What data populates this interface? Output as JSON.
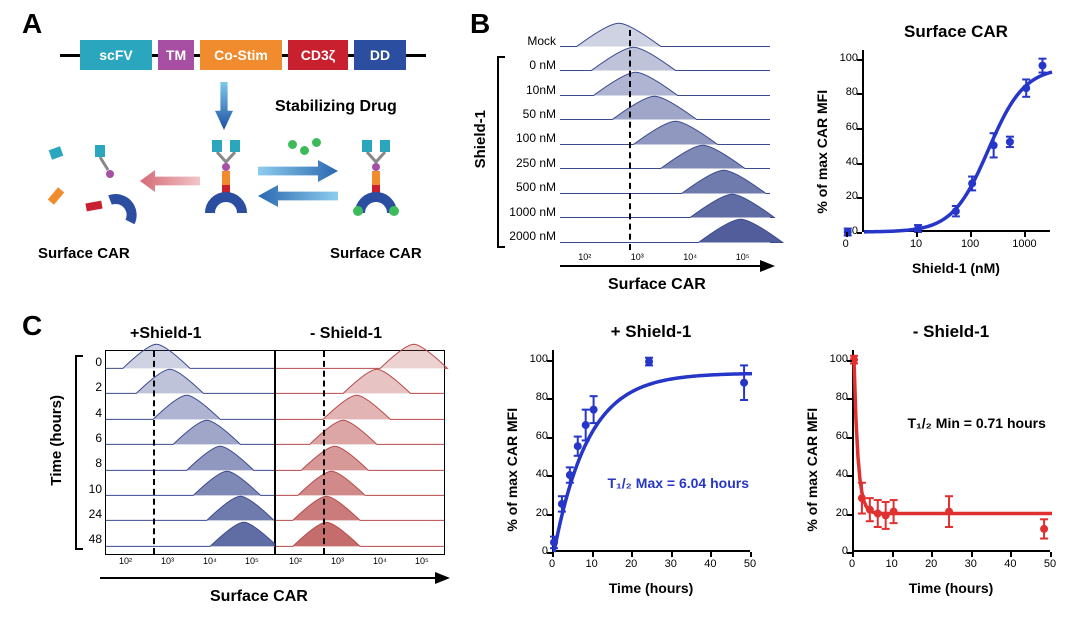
{
  "panelA": {
    "label": "A",
    "construct": [
      {
        "text": "scFV",
        "width": 72,
        "color": "#2aa7bf"
      },
      {
        "text": "TM",
        "width": 36,
        "color": "#a64fa3"
      },
      {
        "text": "Co-Stim",
        "width": 82,
        "color": "#f08c2e"
      },
      {
        "text": "CD3ζ",
        "width": 60,
        "color": "#c8202f"
      },
      {
        "text": "DD",
        "width": 52,
        "color": "#2b4ea0"
      }
    ],
    "stabilizing_drug_label": "Stabilizing\nDrug",
    "surface_car_label": "Surface CAR",
    "drug_color": "#3dbb5b",
    "arrow_gradient": [
      "#7ec8ed",
      "#1e50a2"
    ],
    "red_arrow_color": "#e38b93"
  },
  "panelB": {
    "label": "B",
    "histo": {
      "title": "Surface CAR",
      "bracket_label": "Shield-1",
      "rows": [
        "Mock",
        "0 nM",
        "10nM",
        "50 nM",
        "100 nM",
        "250 nM",
        "500 nM",
        "1000 nM",
        "2000 nM"
      ],
      "peak_positions": [
        0.28,
        0.35,
        0.36,
        0.45,
        0.55,
        0.68,
        0.78,
        0.82,
        0.86
      ],
      "color_base": "#3b4a8f",
      "dash_x": 0.33,
      "x_log_ticks": [
        "10²",
        "10³",
        "10⁴",
        "10⁵"
      ]
    },
    "chart": {
      "title": "Surface CAR",
      "xlabel": "Shield-1 (nM)",
      "ylabel": "% of max CAR MFI",
      "xlog": true,
      "xticks": [
        0,
        10,
        100,
        1000
      ],
      "yticks": [
        0,
        20,
        40,
        60,
        80,
        100
      ],
      "xlim": [
        1,
        3000
      ],
      "ylim": [
        0,
        105
      ],
      "color": "#2636c8",
      "points": [
        {
          "x": 0.5,
          "y": 0,
          "err": 2
        },
        {
          "x": 10,
          "y": 2,
          "err": 2
        },
        {
          "x": 50,
          "y": 12,
          "err": 3
        },
        {
          "x": 100,
          "y": 28,
          "err": 4
        },
        {
          "x": 250,
          "y": 50,
          "err": 7
        },
        {
          "x": 500,
          "y": 52,
          "err": 3
        },
        {
          "x": 1000,
          "y": 83,
          "err": 5
        },
        {
          "x": 2000,
          "y": 96,
          "err": 4
        }
      ]
    }
  },
  "panelC": {
    "label": "C",
    "histo": {
      "title_left": "+Shield-1",
      "title_right": "- Shield-1",
      "axis_label": "Surface CAR",
      "bracket_label": "Time (hours)",
      "rows": [
        "0",
        "2",
        "4",
        "6",
        "8",
        "10",
        "24",
        "48"
      ],
      "left_peaks": [
        0.3,
        0.38,
        0.48,
        0.6,
        0.68,
        0.72,
        0.8,
        0.82
      ],
      "right_peaks": [
        0.82,
        0.6,
        0.48,
        0.4,
        0.35,
        0.33,
        0.3,
        0.3
      ],
      "left_color": "#3b4a8f",
      "right_color": "#b84a4a",
      "dash_x": 0.28,
      "x_log_ticks": [
        "10²",
        "10³",
        "10⁴",
        "10⁵"
      ]
    },
    "chart_plus": {
      "title": "+ Shield-1",
      "xlabel": "Time (hours)",
      "ylabel": "% of max CAR MFI",
      "xticks": [
        0,
        10,
        20,
        30,
        40,
        50
      ],
      "yticks": [
        0,
        20,
        40,
        60,
        80,
        100
      ],
      "xlim": [
        0,
        50
      ],
      "ylim": [
        0,
        105
      ],
      "color": "#2636c8",
      "t_half": "T₁/₂ Max = 6.04 hours",
      "points": [
        {
          "x": 0,
          "y": 5,
          "err": 3
        },
        {
          "x": 2,
          "y": 25,
          "err": 4
        },
        {
          "x": 4,
          "y": 40,
          "err": 4
        },
        {
          "x": 6,
          "y": 55,
          "err": 5
        },
        {
          "x": 8,
          "y": 66,
          "err": 8
        },
        {
          "x": 10,
          "y": 74,
          "err": 7
        },
        {
          "x": 24,
          "y": 99,
          "err": 2
        },
        {
          "x": 48,
          "y": 88,
          "err": 9
        }
      ]
    },
    "chart_minus": {
      "title": "- Shield-1",
      "xlabel": "Time (hours)",
      "ylabel": "% of max CAR MFI",
      "xticks": [
        0,
        10,
        20,
        30,
        40,
        50
      ],
      "yticks": [
        0,
        20,
        40,
        60,
        80,
        100
      ],
      "xlim": [
        0,
        50
      ],
      "ylim": [
        0,
        105
      ],
      "color": "#e03030",
      "t_half": "T₁/₂ Min = 0.71 hours",
      "points": [
        {
          "x": 0,
          "y": 100,
          "err": 2
        },
        {
          "x": 2,
          "y": 28,
          "err": 8
        },
        {
          "x": 4,
          "y": 22,
          "err": 6
        },
        {
          "x": 6,
          "y": 20,
          "err": 7
        },
        {
          "x": 8,
          "y": 19,
          "err": 7
        },
        {
          "x": 10,
          "y": 21,
          "err": 6
        },
        {
          "x": 24,
          "y": 21,
          "err": 8
        },
        {
          "x": 48,
          "y": 12,
          "err": 5
        }
      ]
    }
  }
}
